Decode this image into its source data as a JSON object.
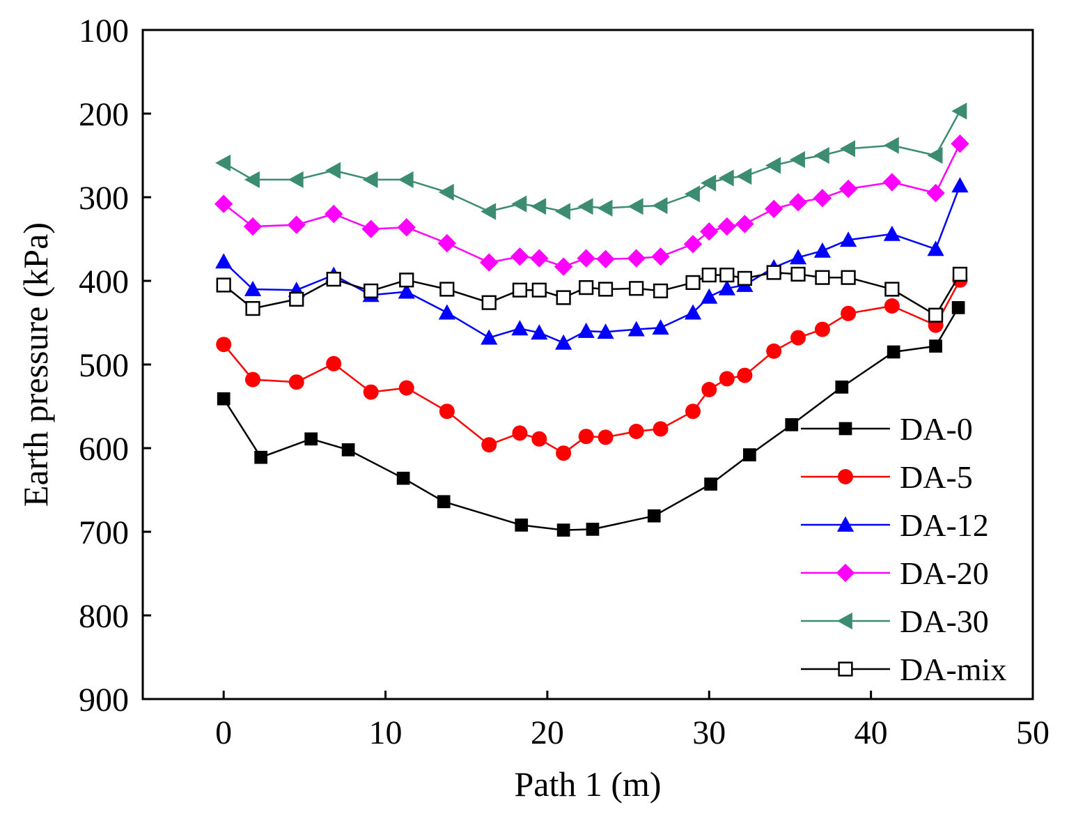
{
  "chart_data": {
    "type": "line",
    "title": "",
    "xlabel": "Path 1 (m)",
    "ylabel": "Earth pressure (kPa)",
    "xlim": [
      -5,
      50
    ],
    "ylim": [
      100,
      900
    ],
    "y_inverted": true,
    "xticks": [
      0,
      10,
      20,
      30,
      40,
      50
    ],
    "yticks": [
      100,
      200,
      300,
      400,
      500,
      600,
      700,
      800,
      900
    ],
    "xtick_labels": [
      "0",
      "10",
      "20",
      "30",
      "40",
      "50"
    ],
    "ytick_labels": [
      "100",
      "200",
      "300",
      "400",
      "500",
      "600",
      "700",
      "800",
      "900"
    ],
    "grid": false,
    "legend_position": "bottom-right",
    "series": [
      {
        "name": "DA-0",
        "color": "#000000",
        "marker": "square-filled",
        "points": [
          [
            0,
            541
          ],
          [
            2.3,
            611
          ],
          [
            5.4,
            589
          ],
          [
            7.7,
            602
          ],
          [
            11.1,
            636
          ],
          [
            13.6,
            664
          ],
          [
            18.4,
            692
          ],
          [
            21,
            698
          ],
          [
            22.8,
            697
          ],
          [
            26.6,
            681
          ],
          [
            30.1,
            643
          ],
          [
            32.5,
            608
          ],
          [
            35.1,
            572
          ],
          [
            38.2,
            527
          ],
          [
            41.4,
            485
          ],
          [
            44,
            478
          ],
          [
            45.4,
            432
          ]
        ]
      },
      {
        "name": "DA-5",
        "color": "#ff0000",
        "marker": "circle-filled",
        "points": [
          [
            0,
            476
          ],
          [
            1.8,
            518
          ],
          [
            4.5,
            521
          ],
          [
            6.8,
            499
          ],
          [
            9.1,
            533
          ],
          [
            11.3,
            528
          ],
          [
            13.8,
            556
          ],
          [
            16.4,
            596
          ],
          [
            18.3,
            582
          ],
          [
            19.5,
            589
          ],
          [
            21,
            606
          ],
          [
            22.4,
            586
          ],
          [
            23.6,
            587
          ],
          [
            25.5,
            580
          ],
          [
            27,
            577
          ],
          [
            29,
            556
          ],
          [
            30,
            530
          ],
          [
            31.1,
            517
          ],
          [
            32.2,
            513
          ],
          [
            34,
            484
          ],
          [
            35.5,
            468
          ],
          [
            37,
            458
          ],
          [
            38.6,
            439
          ],
          [
            41.3,
            430
          ],
          [
            44,
            453
          ],
          [
            45.5,
            399
          ]
        ]
      },
      {
        "name": "DA-12",
        "color": "#0000ff",
        "marker": "triangle-filled",
        "points": [
          [
            0,
            377
          ],
          [
            1.8,
            410
          ],
          [
            4.5,
            411
          ],
          [
            6.8,
            393
          ],
          [
            9.1,
            417
          ],
          [
            11.3,
            413
          ],
          [
            13.8,
            438
          ],
          [
            16.4,
            468
          ],
          [
            18.3,
            457
          ],
          [
            19.5,
            462
          ],
          [
            21,
            474
          ],
          [
            22.4,
            460
          ],
          [
            23.6,
            461
          ],
          [
            25.5,
            458
          ],
          [
            27,
            456
          ],
          [
            29,
            438
          ],
          [
            30,
            419
          ],
          [
            31.1,
            409
          ],
          [
            32.2,
            405
          ],
          [
            34,
            384
          ],
          [
            35.5,
            372
          ],
          [
            37,
            364
          ],
          [
            38.6,
            351
          ],
          [
            41.3,
            344
          ],
          [
            44,
            362
          ],
          [
            45.5,
            286
          ]
        ]
      },
      {
        "name": "DA-20",
        "color": "#ff00ff",
        "marker": "diamond-filled",
        "points": [
          [
            0,
            308
          ],
          [
            1.8,
            335
          ],
          [
            4.5,
            333
          ],
          [
            6.8,
            320
          ],
          [
            9.1,
            338
          ],
          [
            11.3,
            336
          ],
          [
            13.8,
            355
          ],
          [
            16.4,
            378
          ],
          [
            18.3,
            371
          ],
          [
            19.5,
            373
          ],
          [
            21,
            383
          ],
          [
            22.4,
            373
          ],
          [
            23.6,
            374
          ],
          [
            25.5,
            373
          ],
          [
            27,
            371
          ],
          [
            29,
            356
          ],
          [
            30,
            341
          ],
          [
            31.1,
            335
          ],
          [
            32.2,
            332
          ],
          [
            34,
            314
          ],
          [
            35.5,
            306
          ],
          [
            37,
            301
          ],
          [
            38.6,
            290
          ],
          [
            41.3,
            282
          ],
          [
            44,
            295
          ],
          [
            45.5,
            236
          ]
        ]
      },
      {
        "name": "DA-30",
        "color": "#3c8c72",
        "marker": "triangle-left-filled",
        "points": [
          [
            0,
            259
          ],
          [
            1.8,
            279
          ],
          [
            4.5,
            279
          ],
          [
            6.8,
            268
          ],
          [
            9.1,
            279
          ],
          [
            11.3,
            279
          ],
          [
            13.8,
            294
          ],
          [
            16.4,
            317
          ],
          [
            18.3,
            308
          ],
          [
            19.5,
            311
          ],
          [
            21,
            317
          ],
          [
            22.4,
            311
          ],
          [
            23.6,
            313
          ],
          [
            25.5,
            311
          ],
          [
            27,
            310
          ],
          [
            29,
            296
          ],
          [
            30,
            283
          ],
          [
            31.1,
            277
          ],
          [
            32.2,
            275
          ],
          [
            34,
            262
          ],
          [
            35.5,
            255
          ],
          [
            37,
            250
          ],
          [
            38.6,
            242
          ],
          [
            41.3,
            238
          ],
          [
            44,
            250
          ],
          [
            45.5,
            197
          ]
        ]
      },
      {
        "name": "DA-mix",
        "color": "#000000",
        "marker": "square-open",
        "points": [
          [
            0,
            405
          ],
          [
            1.8,
            433
          ],
          [
            4.5,
            422
          ],
          [
            6.8,
            398
          ],
          [
            9.1,
            412
          ],
          [
            11.3,
            399
          ],
          [
            13.8,
            410
          ],
          [
            16.4,
            426
          ],
          [
            18.3,
            411
          ],
          [
            19.5,
            411
          ],
          [
            21,
            420
          ],
          [
            22.4,
            408
          ],
          [
            23.6,
            410
          ],
          [
            25.5,
            409
          ],
          [
            27,
            412
          ],
          [
            29,
            402
          ],
          [
            30,
            393
          ],
          [
            31.1,
            393
          ],
          [
            32.2,
            397
          ],
          [
            34,
            390
          ],
          [
            35.5,
            392
          ],
          [
            37,
            396
          ],
          [
            38.6,
            396
          ],
          [
            41.3,
            410
          ],
          [
            44,
            441
          ],
          [
            45.5,
            392
          ]
        ]
      }
    ]
  }
}
